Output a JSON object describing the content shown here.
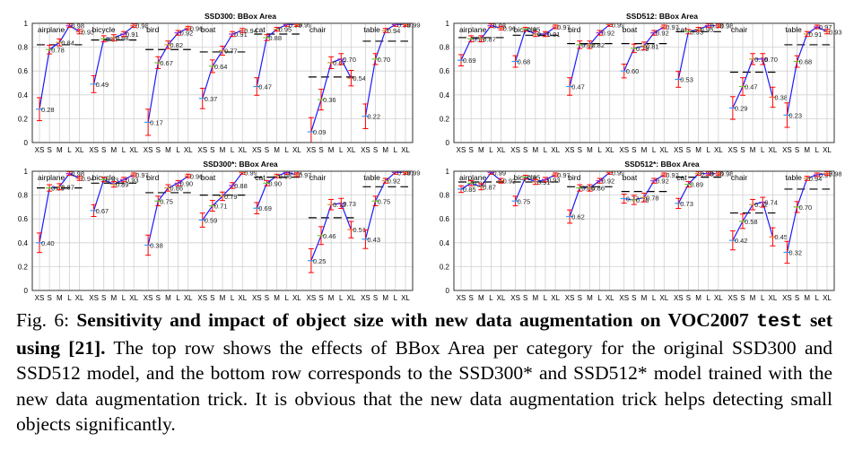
{
  "chart_data": [
    {
      "type": "line",
      "title": "SSD300: BBox Area",
      "xlabel": "",
      "ylabel": "",
      "ylim": [
        0,
        1
      ],
      "yticks": [
        "0",
        "0.2",
        "0.4",
        "0.6",
        "0.8",
        "1"
      ],
      "size_labels": [
        "XS",
        "S",
        "M",
        "L",
        "XL"
      ],
      "grid": true,
      "groups": [
        {
          "category": "airplane",
          "values": [
            0.28,
            0.78,
            0.84,
            0.98,
            0.93
          ],
          "average": 0.82
        },
        {
          "category": "bicycle",
          "values": [
            0.49,
            0.87,
            0.88,
            0.91,
            0.98
          ],
          "average": 0.86
        },
        {
          "category": "bird",
          "values": [
            0.17,
            0.67,
            0.82,
            0.92,
            0.96
          ],
          "average": 0.78
        },
        {
          "category": "boat",
          "values": [
            0.37,
            0.64,
            0.77,
            0.91,
            0.94
          ],
          "average": 0.76
        },
        {
          "category": "cat",
          "values": [
            0.47,
            0.88,
            0.95,
            0.99,
            0.99
          ],
          "average": 0.91
        },
        {
          "category": "chair",
          "values": [
            0.09,
            0.36,
            0.67,
            0.7,
            0.54
          ],
          "average": 0.55
        },
        {
          "category": "table",
          "values": [
            0.22,
            0.7,
            0.94,
            0.99,
            0.99
          ],
          "average": 0.85
        }
      ]
    },
    {
      "type": "line",
      "title": "SSD512: BBox Area",
      "xlabel": "",
      "ylabel": "",
      "ylim": [
        0,
        1
      ],
      "yticks": [
        "0",
        "0.2",
        "0.4",
        "0.6",
        "0.8",
        "1"
      ],
      "size_labels": [
        "XS",
        "S",
        "M",
        "L",
        "XL"
      ],
      "grid": true,
      "groups": [
        {
          "category": "airplane",
          "values": [
            0.69,
            0.87,
            0.87,
            0.98,
            0.96
          ],
          "average": 0.88
        },
        {
          "category": "bicycle",
          "values": [
            0.68,
            0.95,
            0.91,
            0.91,
            0.97
          ],
          "average": 0.9
        },
        {
          "category": "bird",
          "values": [
            0.47,
            0.82,
            0.82,
            0.92,
            0.99
          ],
          "average": 0.83
        },
        {
          "category": "boat",
          "values": [
            0.6,
            0.79,
            0.81,
            0.92,
            0.97
          ],
          "average": 0.83
        },
        {
          "category": "cat",
          "values": [
            0.53,
            0.93,
            0.95,
            0.98,
            0.98
          ],
          "average": 0.93
        },
        {
          "category": "chair",
          "values": [
            0.29,
            0.47,
            0.7,
            0.7,
            0.38
          ],
          "average": 0.59
        },
        {
          "category": "table",
          "values": [
            0.23,
            0.68,
            0.91,
            0.97,
            0.93
          ],
          "average": 0.82
        }
      ]
    },
    {
      "type": "line",
      "title": "SSD300*: BBox Area",
      "xlabel": "",
      "ylabel": "",
      "ylim": [
        0,
        1
      ],
      "yticks": [
        "0",
        "0.2",
        "0.4",
        "0.6",
        "0.8",
        "1"
      ],
      "size_labels": [
        "XS",
        "S",
        "M",
        "L",
        "XL"
      ],
      "grid": true,
      "groups": [
        {
          "category": "airplane",
          "values": [
            0.4,
            0.86,
            0.87,
            0.98,
            0.94
          ],
          "average": 0.86
        },
        {
          "category": "bicycle",
          "values": [
            0.67,
            0.93,
            0.89,
            0.93,
            0.97
          ],
          "average": 0.9
        },
        {
          "category": "bird",
          "values": [
            0.38,
            0.75,
            0.86,
            0.9,
            0.96
          ],
          "average": 0.82
        },
        {
          "category": "boat",
          "values": [
            0.59,
            0.71,
            0.79,
            0.88,
            0.99
          ],
          "average": 0.8
        },
        {
          "category": "cat",
          "values": [
            0.69,
            0.9,
            0.96,
            0.99,
            0.97
          ],
          "average": 0.95
        },
        {
          "category": "chair",
          "values": [
            0.25,
            0.46,
            0.72,
            0.73,
            0.51
          ],
          "average": 0.61
        },
        {
          "category": "table",
          "values": [
            0.43,
            0.75,
            0.92,
            0.99,
            0.99
          ],
          "average": 0.87
        }
      ]
    },
    {
      "type": "line",
      "title": "SSD512*: BBox Area",
      "xlabel": "",
      "ylabel": "",
      "ylim": [
        0,
        1
      ],
      "yticks": [
        "0",
        "0.2",
        "0.4",
        "0.6",
        "0.8",
        "1"
      ],
      "size_labels": [
        "XS",
        "S",
        "M",
        "L",
        "XL"
      ],
      "grid": true,
      "groups": [
        {
          "category": "airplane",
          "values": [
            0.85,
            0.9,
            0.87,
            0.99,
            0.92
          ],
          "average": 0.91
        },
        {
          "category": "bicycle",
          "values": [
            0.75,
            0.95,
            0.91,
            0.93,
            0.97
          ],
          "average": 0.91
        },
        {
          "category": "bird",
          "values": [
            0.62,
            0.86,
            0.86,
            0.92,
            0.99
          ],
          "average": 0.87
        },
        {
          "category": "boat",
          "values": [
            0.77,
            0.76,
            0.78,
            0.92,
            0.97
          ],
          "average": 0.83
        },
        {
          "category": "cat",
          "values": [
            0.73,
            0.89,
            0.98,
            0.98,
            0.98
          ],
          "average": 0.95
        },
        {
          "category": "chair",
          "values": [
            0.42,
            0.58,
            0.72,
            0.74,
            0.45
          ],
          "average": 0.65
        },
        {
          "category": "table",
          "values": [
            0.32,
            0.7,
            0.94,
            0.97,
            0.98
          ],
          "average": 0.85
        }
      ]
    }
  ],
  "caption": {
    "prefix": "Fig. 6: ",
    "bold_part1": "Sensitivity and impact of object size with new data augmentation on VOC2007 ",
    "bold_mono": "test",
    "bold_part2": " set using [21].",
    "rest": " The top row shows the effects of BBox Area per category for the original SSD300 and SSD512 model, and the bottom row corresponds to the SSD300* and SSD512* model trained with the new data augmentation trick. It is obvious that the new data augmentation trick helps detecting small objects significantly."
  },
  "colors": {
    "line": "#1a1aff",
    "errorbar": "#ff0000",
    "average_dash": "#000000",
    "grid": "#d0d0d0",
    "marker_colors": [
      "#3399ff",
      "#66cc33",
      "#cc9933",
      "#9933cc",
      "#ff6633"
    ]
  }
}
